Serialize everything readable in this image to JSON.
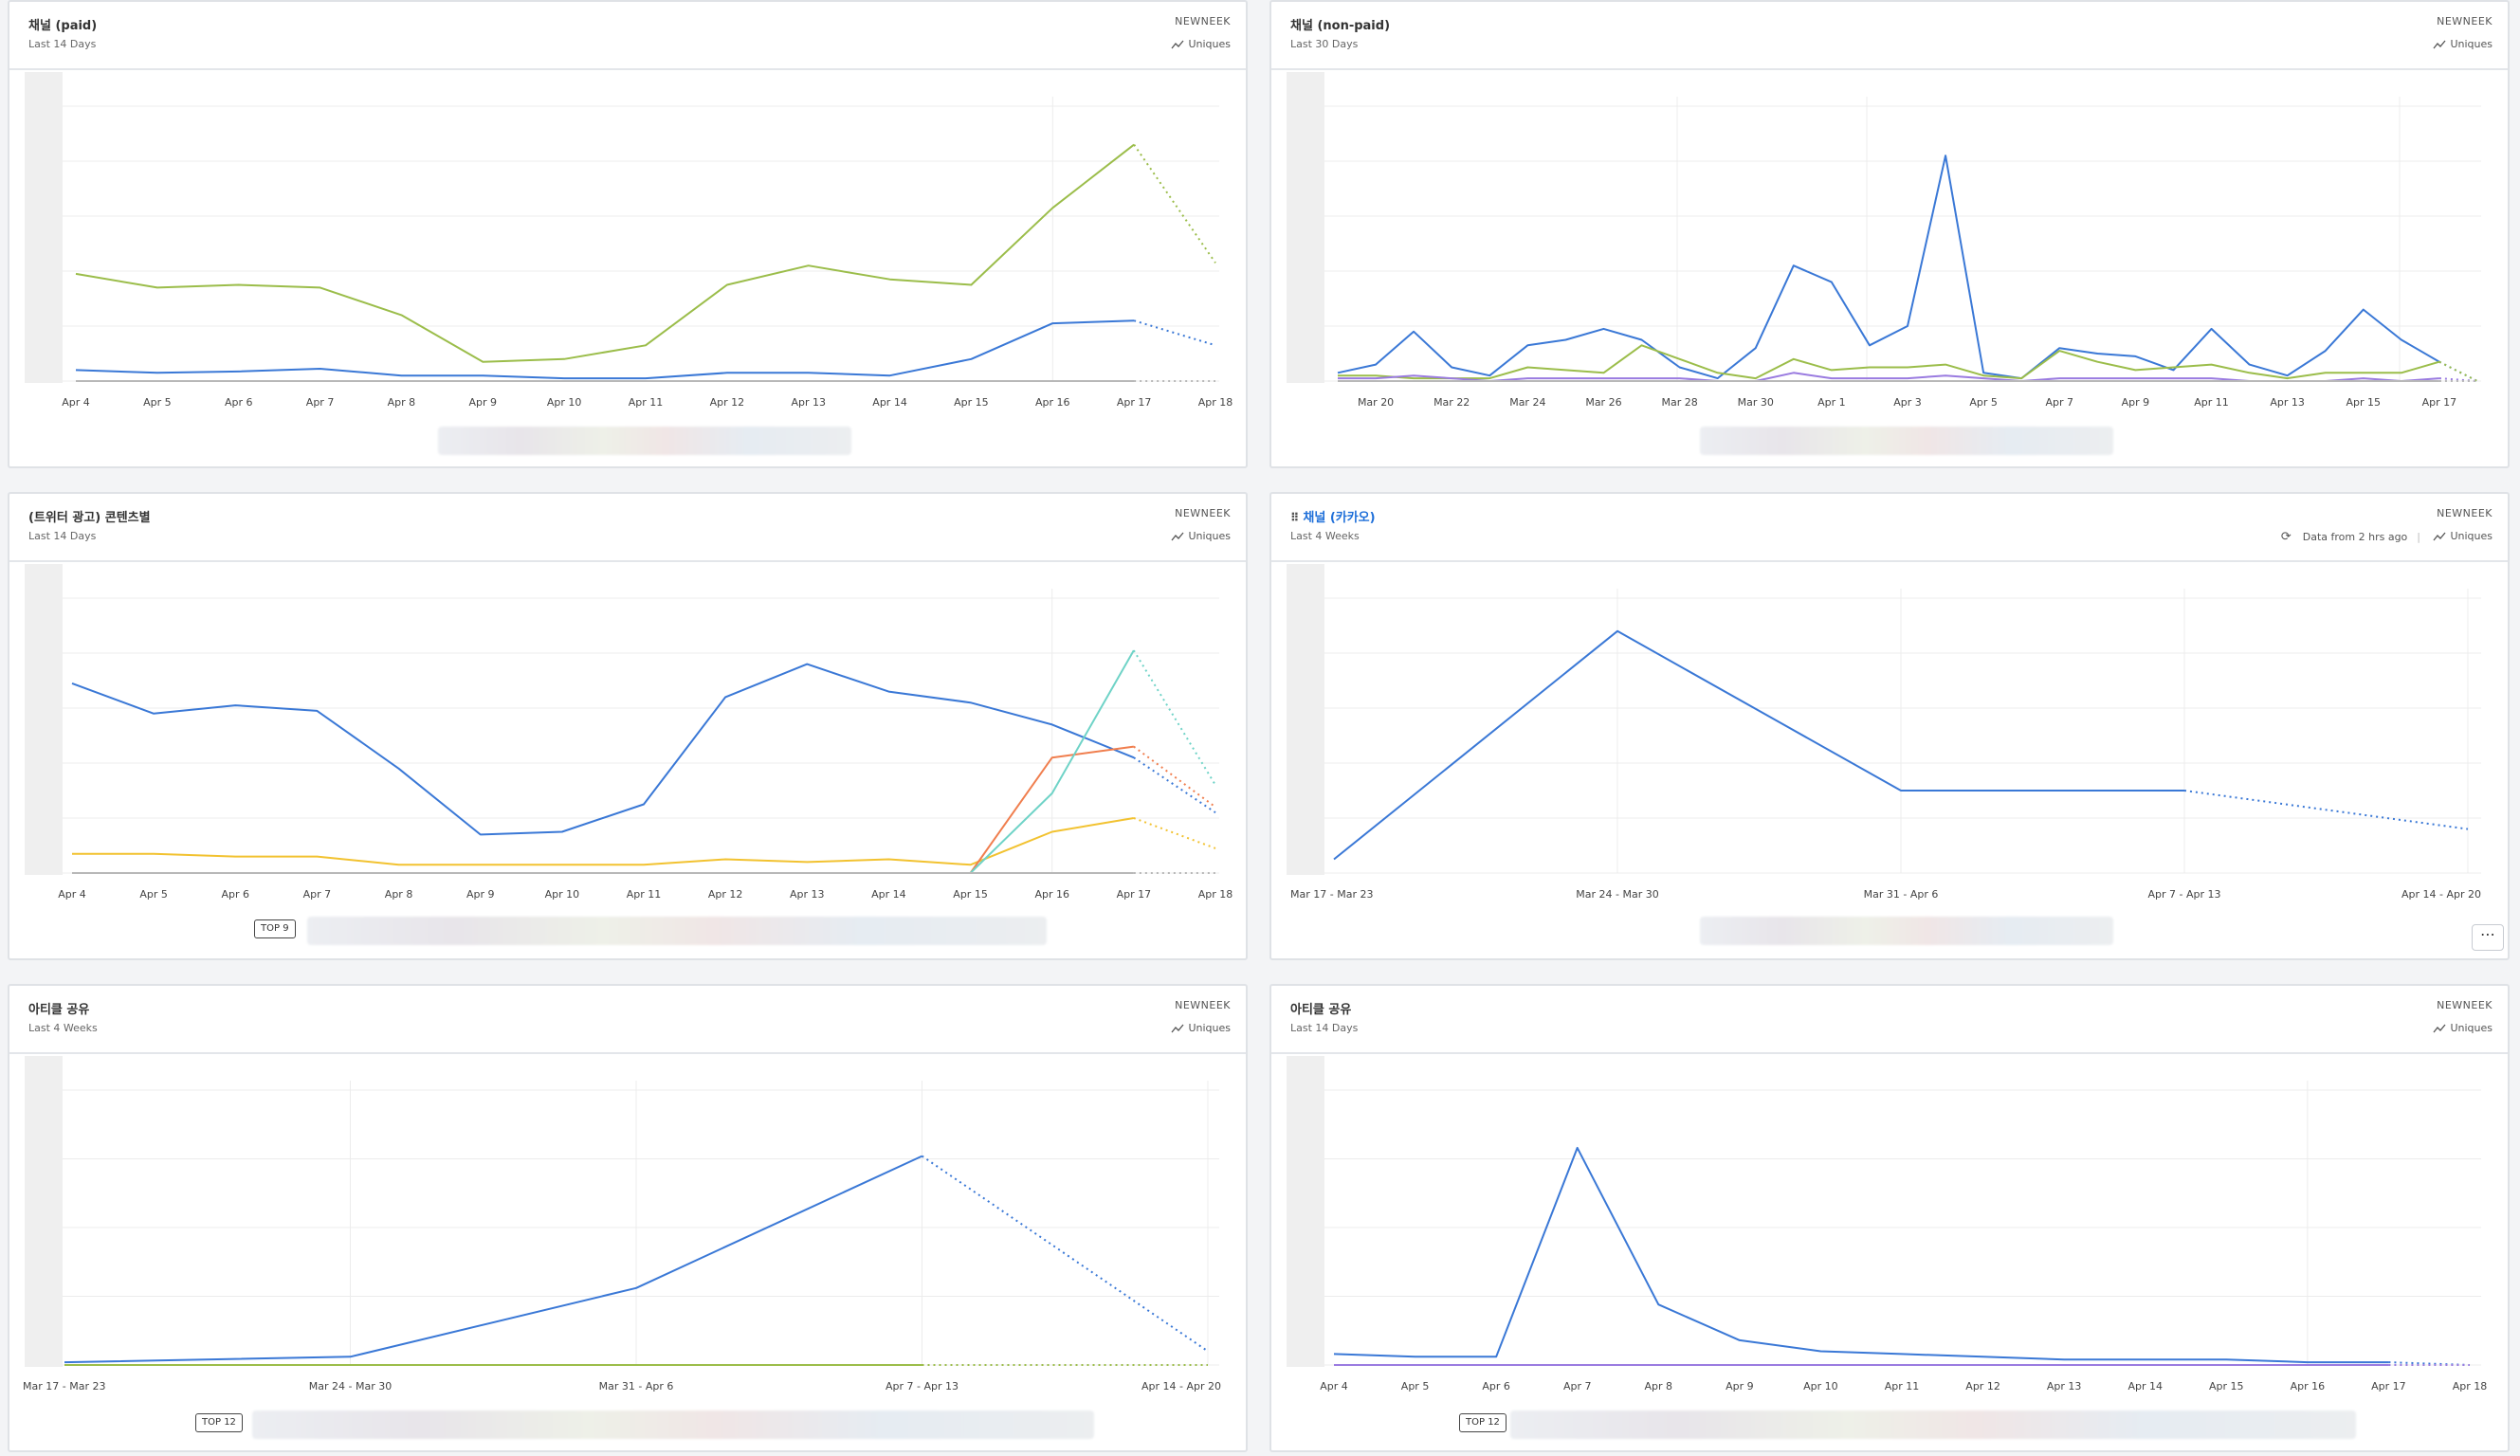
{
  "colors": {
    "blue": "#3a78d6",
    "green": "#9bbd4a",
    "yellow": "#f2c230",
    "orange": "#f07e4e",
    "teal": "#6fd3c7",
    "purple": "#9a7be0",
    "gray": "#b8b8b8"
  },
  "panels": [
    {
      "title": "채널 (paid)",
      "subtitle": "Last 14 Days",
      "project": "NEWNEEK",
      "metric": "Uniques",
      "chart_data": {
        "type": "line",
        "x": [
          "Apr 4",
          "Apr 5",
          "Apr 6",
          "Apr 7",
          "Apr 8",
          "Apr 9",
          "Apr 10",
          "Apr 11",
          "Apr 12",
          "Apr 13",
          "Apr 14",
          "Apr 15",
          "Apr 16",
          "Apr 17",
          "Apr 18"
        ],
        "ylim": [
          0,
          100
        ],
        "series": [
          {
            "color": "green",
            "values": [
              39,
              34,
              35,
              34,
              24,
              7,
              8,
              13,
              35,
              42,
              37,
              35,
              63,
              86,
              43
            ]
          },
          {
            "color": "blue",
            "values": [
              4,
              3,
              3.5,
              4.5,
              2,
              2,
              1,
              1,
              3,
              3,
              2,
              8,
              21,
              22,
              13
            ]
          },
          {
            "color": "gray",
            "values": [
              0,
              0,
              0,
              0,
              0,
              0,
              0,
              0,
              0,
              0,
              0,
              0,
              0,
              0,
              0
            ]
          }
        ]
      }
    },
    {
      "title": "채널 (non-paid)",
      "subtitle": "Last 30 Days",
      "project": "NEWNEEK",
      "metric": "Uniques",
      "chart_data": {
        "type": "line",
        "x": [
          "Mar 19",
          "Mar 20",
          "Mar 21",
          "Mar 22",
          "Mar 23",
          "Mar 24",
          "Mar 25",
          "Mar 26",
          "Mar 27",
          "Mar 28",
          "Mar 29",
          "Mar 30",
          "Mar 31",
          "Apr 1",
          "Apr 2",
          "Apr 3",
          "Apr 4",
          "Apr 5",
          "Apr 6",
          "Apr 7",
          "Apr 8",
          "Apr 9",
          "Apr 10",
          "Apr 11",
          "Apr 12",
          "Apr 13",
          "Apr 14",
          "Apr 15",
          "Apr 16",
          "Apr 17",
          "Apr 18"
        ],
        "tick_labels": [
          "Mar 20",
          "Mar 22",
          "Mar 24",
          "Mar 26",
          "Mar 28",
          "Mar 30",
          "Apr 1",
          "Apr 3",
          "Apr 5",
          "Apr 7",
          "Apr 9",
          "Apr 11",
          "Apr 13",
          "Apr 15",
          "Apr 17"
        ],
        "ylim": [
          0,
          100
        ],
        "series": [
          {
            "color": "blue",
            "values": [
              3,
              6,
              18,
              5,
              2,
              13,
              15,
              19,
              15,
              5,
              1,
              12,
              42,
              36,
              13,
              20,
              82,
              3,
              1,
              12,
              10,
              9,
              4,
              19,
              6,
              2,
              11,
              26,
              15,
              7,
              0
            ]
          },
          {
            "color": "green",
            "values": [
              2,
              2,
              1,
              1,
              1,
              5,
              4,
              3,
              13,
              8,
              3,
              1,
              8,
              4,
              5,
              5,
              6,
              2,
              1,
              11,
              7,
              4,
              5,
              6,
              3,
              1,
              3,
              3,
              3,
              7,
              0
            ]
          },
          {
            "color": "purple",
            "values": [
              1,
              1,
              2,
              1,
              0,
              1,
              1,
              1,
              1,
              1,
              0,
              0,
              3,
              1,
              1,
              1,
              2,
              1,
              0,
              1,
              1,
              1,
              1,
              1,
              0,
              0,
              0,
              1,
              0,
              1,
              0
            ]
          },
          {
            "color": "gray",
            "values": [
              0,
              0,
              0,
              0,
              0,
              0,
              0,
              0,
              0,
              0,
              0,
              0,
              0,
              0,
              0,
              0,
              0,
              0,
              0,
              0,
              0,
              0,
              0,
              0,
              0,
              0,
              0,
              0,
              0,
              0,
              0
            ]
          }
        ]
      }
    },
    {
      "title": "(트위터 광고) 콘텐츠별",
      "subtitle": "Last 14 Days",
      "project": "NEWNEEK",
      "metric": "Uniques",
      "badge": "TOP 9",
      "chart_data": {
        "type": "line",
        "x": [
          "Apr 4",
          "Apr 5",
          "Apr 6",
          "Apr 7",
          "Apr 8",
          "Apr 9",
          "Apr 10",
          "Apr 11",
          "Apr 12",
          "Apr 13",
          "Apr 14",
          "Apr 15",
          "Apr 16",
          "Apr 17",
          "Apr 18"
        ],
        "ylim": [
          0,
          100
        ],
        "series": [
          {
            "color": "blue",
            "values": [
              69,
              58,
              61,
              59,
              38,
              14,
              15,
              25,
              64,
              76,
              66,
              62,
              54,
              42,
              22
            ]
          },
          {
            "color": "yellow",
            "values": [
              7,
              7,
              6,
              6,
              3,
              3,
              3,
              3,
              5,
              4,
              5,
              3,
              15,
              20,
              9
            ]
          },
          {
            "color": "orange",
            "values": [
              0,
              0,
              0,
              0,
              0,
              0,
              0,
              0,
              0,
              0,
              0,
              0,
              42,
              46,
              24
            ]
          },
          {
            "color": "teal",
            "values": [
              0,
              0,
              0,
              0,
              0,
              0,
              0,
              0,
              0,
              0,
              0,
              0,
              29,
              81,
              32
            ]
          },
          {
            "color": "gray",
            "values": [
              0,
              0,
              0,
              0,
              0,
              0,
              0,
              0,
              0,
              0,
              0,
              0,
              0,
              0,
              0
            ]
          }
        ]
      }
    },
    {
      "title": "채널 (카카오)",
      "subtitle": "Last 4 Weeks",
      "project": "NEWNEEK",
      "metric": "Uniques",
      "freshness": "Data from 2 hrs ago",
      "chart_data": {
        "type": "line",
        "x": [
          "Mar 17 - Mar 23",
          "Mar 24 - Mar 30",
          "Mar 31 - Apr 6",
          "Apr 7 - Apr 13",
          "Apr 14 - Apr 20"
        ],
        "ylim": [
          0,
          100
        ],
        "series": [
          {
            "color": "blue",
            "values": [
              5,
              88,
              30,
              30,
              16
            ]
          }
        ]
      }
    },
    {
      "title": "아티클 공유",
      "subtitle": "Last 4 Weeks",
      "project": "NEWNEEK",
      "metric": "Uniques",
      "badge": "TOP 12",
      "chart_data": {
        "type": "line",
        "x": [
          "Mar 17 - Mar 23",
          "Mar 24 - Mar 30",
          "Mar 31 - Apr 6",
          "Apr 7 - Apr 13",
          "Apr 14 - Apr 20"
        ],
        "ylim": [
          0,
          100
        ],
        "series": [
          {
            "color": "blue",
            "values": [
              1,
              3,
              28,
              76,
              5
            ]
          },
          {
            "color": "green",
            "values": [
              0,
              0,
              0,
              0,
              0
            ]
          }
        ]
      }
    },
    {
      "title": "아티클 공유",
      "subtitle": "Last 14 Days",
      "project": "NEWNEEK",
      "metric": "Uniques",
      "badge": "TOP 12",
      "chart_data": {
        "type": "line",
        "x": [
          "Apr 4",
          "Apr 5",
          "Apr 6",
          "Apr 7",
          "Apr 8",
          "Apr 9",
          "Apr 10",
          "Apr 11",
          "Apr 12",
          "Apr 13",
          "Apr 14",
          "Apr 15",
          "Apr 16",
          "Apr 17",
          "Apr 18"
        ],
        "ylim": [
          0,
          100
        ],
        "series": [
          {
            "color": "blue",
            "values": [
              4,
              3,
              3,
              79,
              22,
              9,
              5,
              4,
              3,
              2,
              2,
              2,
              1,
              1,
              0
            ]
          },
          {
            "color": "purple",
            "values": [
              0,
              0,
              0,
              0,
              0,
              0,
              0,
              0,
              0,
              0,
              0,
              0,
              0,
              0,
              0
            ]
          }
        ]
      }
    }
  ]
}
